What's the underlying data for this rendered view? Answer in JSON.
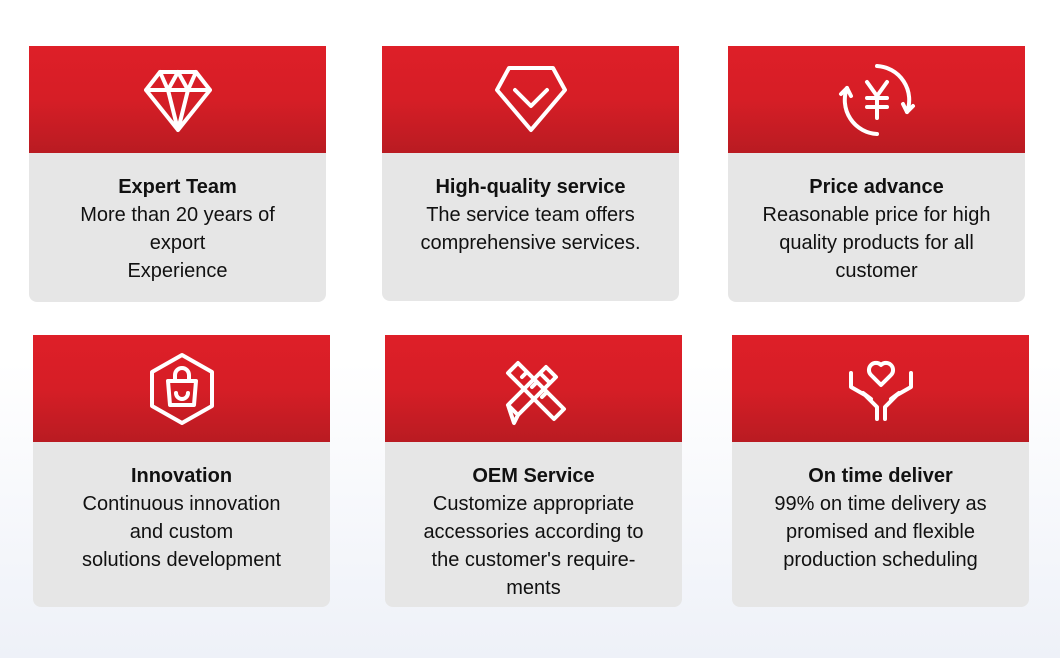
{
  "cards": [
    {
      "icon": "diamond-icon",
      "title": "Expert Team",
      "lines": [
        "More than 20 years of",
        "export",
        "Experience"
      ]
    },
    {
      "icon": "shield-check-icon",
      "title": "High-quality service",
      "lines": [
        "The service team offers",
        "comprehensive services."
      ]
    },
    {
      "icon": "yen-refresh-icon",
      "title": "Price advance",
      "lines": [
        "Reasonable price for high",
        "quality products for all",
        "customer"
      ]
    },
    {
      "icon": "shopping-bag-icon",
      "title": "Innovation",
      "lines": [
        "Continuous innovation",
        "and custom",
        "solutions development"
      ]
    },
    {
      "icon": "pencil-ruler-icon",
      "title": "OEM Service",
      "lines": [
        "Customize appropriate",
        "accessories according to",
        "the customer's require-",
        "ments"
      ]
    },
    {
      "icon": "heart-hands-icon",
      "title": "On time deliver",
      "lines": [
        "99% on time delivery as",
        "promised and flexible",
        "production scheduling"
      ]
    }
  ],
  "colors": {
    "red": "#d81e26",
    "card_body": "#e6e6e6"
  }
}
